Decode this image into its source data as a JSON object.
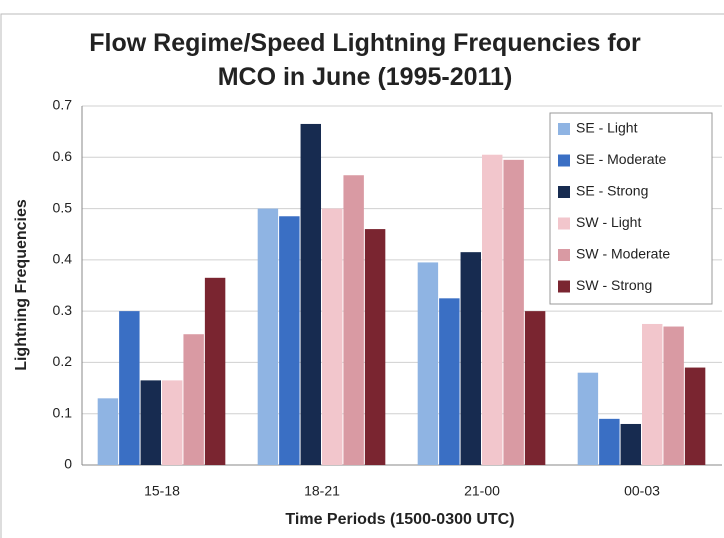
{
  "chart_data": {
    "type": "bar",
    "title": "Flow Regime/Speed Lightning Frequencies for MCO in June (1995-2011)",
    "x_label": "Time Periods (1500-0300 UTC)",
    "y_label": "Lightning Frequencies",
    "categories": [
      "15-18",
      "18-21",
      "21-00",
      "00-03"
    ],
    "series": [
      {
        "name": "SE - Light",
        "color": "#8fb4e3",
        "values": [
          0.13,
          0.5,
          0.395,
          0.18
        ]
      },
      {
        "name": "SE - Moderate",
        "color": "#3a6fc4",
        "values": [
          0.3,
          0.485,
          0.325,
          0.09
        ]
      },
      {
        "name": "SE - Strong",
        "color": "#172b50",
        "values": [
          0.165,
          0.665,
          0.415,
          0.08
        ]
      },
      {
        "name": "SW - Light",
        "color": "#f2c6cc",
        "values": [
          0.165,
          0.5,
          0.605,
          0.275
        ]
      },
      {
        "name": "SW - Moderate",
        "color": "#d99aa3",
        "values": [
          0.255,
          0.565,
          0.595,
          0.27
        ]
      },
      {
        "name": "SW - Strong",
        "color": "#7a2530",
        "values": [
          0.365,
          0.46,
          0.3,
          0.19
        ]
      }
    ],
    "ylim": [
      0,
      0.7
    ],
    "yticks": [
      0,
      0.1,
      0.2,
      0.3,
      0.4,
      0.5,
      0.6,
      0.7
    ],
    "grid": true,
    "legend": "right"
  }
}
